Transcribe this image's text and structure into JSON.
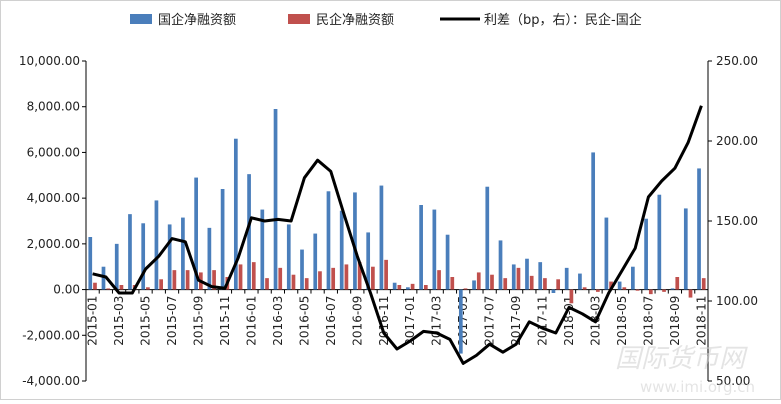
{
  "watermark": {
    "text": "国际货币网",
    "url": "www.imi.org.cn"
  },
  "colors": {
    "soe": "#4a7ebb",
    "private": "#c0504d",
    "spread": "#000000"
  },
  "chart_data": {
    "type": "bar",
    "title": "",
    "legend_position": "top",
    "grid": false,
    "x": [
      "2015-01",
      "2015-02",
      "2015-03",
      "2015-04",
      "2015-05",
      "2015-06",
      "2015-07",
      "2015-08",
      "2015-09",
      "2015-10",
      "2015-11",
      "2015-12",
      "2016-01",
      "2016-02",
      "2016-03",
      "2016-04",
      "2016-05",
      "2016-06",
      "2016-07",
      "2016-08",
      "2016-09",
      "2016-10",
      "2016-11",
      "2016-12",
      "2017-01",
      "2017-02",
      "2017-03",
      "2017-04",
      "2017-05",
      "2017-06",
      "2017-07",
      "2017-08",
      "2017-09",
      "2017-10",
      "2017-11",
      "2017-12",
      "2018-01",
      "2018-02",
      "2018-03",
      "2018-04",
      "2018-05",
      "2018-06",
      "2018-07",
      "2018-08",
      "2018-09",
      "2018-10",
      "2018-11"
    ],
    "x_tick_labels": [
      "2015-01",
      "2015-03",
      "2015-05",
      "2015-07",
      "2015-09",
      "2015-11",
      "2016-01",
      "2016-03",
      "2016-05",
      "2016-07",
      "2016-09",
      "2016-11",
      "2017-01",
      "2017-03",
      "2017-05",
      "2017-07",
      "2017-09",
      "2017-11",
      "2018-01",
      "2018-03",
      "2018-05",
      "2018-07",
      "2018-09",
      "2018-11"
    ],
    "y_left": {
      "range": [
        -4000,
        10000
      ],
      "ticks": [
        -4000,
        -2000,
        0,
        2000,
        4000,
        6000,
        8000,
        10000
      ],
      "tick_labels": [
        "-4,000.00",
        "-2,000.00",
        "0.00",
        "2,000.00",
        "4,000.00",
        "6,000.00",
        "8,000.00",
        "10,000.00"
      ]
    },
    "y_right": {
      "range": [
        50,
        250
      ],
      "ticks": [
        50,
        100,
        150,
        200,
        250
      ],
      "tick_labels": [
        "50.00",
        "100.00",
        "150.00",
        "200.00",
        "250.00"
      ]
    },
    "series": [
      {
        "name": "国企净融资额",
        "type": "bar",
        "axis": "left",
        "values": [
          2300,
          1000,
          2000,
          3300,
          2900,
          3900,
          2850,
          3150,
          4900,
          2700,
          4400,
          6600,
          5050,
          3500,
          7900,
          2850,
          1750,
          2450,
          4300,
          3450,
          4250,
          2500,
          4550,
          300,
          100,
          3700,
          3500,
          2400,
          -2800,
          400,
          4500,
          2150,
          1100,
          1350,
          1200,
          -150,
          950,
          700,
          6000,
          3150,
          350,
          1000,
          3100,
          4150,
          50,
          3550,
          5300
        ]
      },
      {
        "name": "民企净融资额",
        "type": "bar",
        "axis": "left",
        "values": [
          300,
          50,
          200,
          200,
          100,
          450,
          850,
          850,
          750,
          850,
          550,
          1100,
          1200,
          500,
          950,
          650,
          500,
          800,
          950,
          1100,
          1200,
          1000,
          1300,
          200,
          250,
          200,
          850,
          550,
          50,
          750,
          650,
          500,
          950,
          600,
          500,
          450,
          -600,
          100,
          -100,
          350,
          100,
          -50,
          -200,
          -100,
          550,
          -350,
          500
        ]
      },
      {
        "name": "利差（bp，右）：民企-国企",
        "type": "line",
        "axis": "right",
        "values": [
          117,
          115,
          105,
          105,
          120,
          128,
          139,
          137,
          113,
          109,
          108,
          127,
          152,
          150,
          151,
          150,
          177,
          188,
          181,
          154,
          128,
          105,
          80,
          70,
          75,
          81,
          80,
          76,
          61,
          66,
          73,
          68,
          73,
          87,
          83,
          80,
          96,
          92,
          87,
          105,
          119,
          133,
          165,
          175,
          183,
          199,
          222
        ]
      }
    ]
  }
}
